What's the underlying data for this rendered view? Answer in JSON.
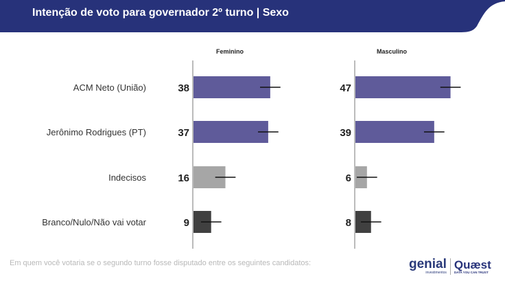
{
  "header": {
    "title": "Intenção de voto para governador 2º turno | Sexo"
  },
  "footer": {
    "question": "Em quem você votaria se o segundo turno fosse disputado entre os seguintes candidatos:",
    "logo_genial": "genial",
    "logo_genial_sub": "investimentos",
    "logo_quaest": "Quaest",
    "logo_quaest_sub": "DATA YOU CAN TRUST"
  },
  "colors": {
    "header": "#27327a",
    "candidate": "#5f5b9a",
    "indecisos": "#a6a6a6",
    "branco": "#404040"
  },
  "chart_data": {
    "type": "bar",
    "orientation": "horizontal",
    "categories": [
      "ACM Neto (União)",
      "Jerônimo Rodrigues (PT)",
      "Indecisos",
      "Branco/Nulo/Não vai votar"
    ],
    "panels": [
      {
        "title": "Feminino",
        "values": [
          38,
          37,
          16,
          9
        ]
      },
      {
        "title": "Masculino",
        "values": [
          47,
          39,
          6,
          8
        ]
      }
    ],
    "error_bars": true
  }
}
